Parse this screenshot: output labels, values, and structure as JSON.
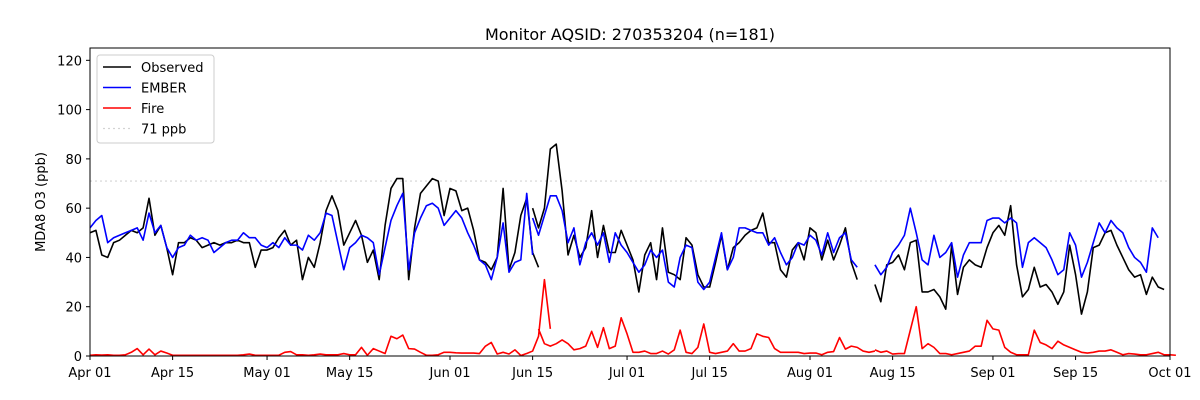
{
  "chart_data": {
    "type": "line",
    "title": "Monitor AQSID: 270353204 (n=181)",
    "xlabel": "",
    "ylabel": "MDA8 O3 (ppb)",
    "x_start": "2023-04-01",
    "x_end": "2023-10-01",
    "x_ticks": [
      {
        "date": "2023-04-01",
        "label": "Apr 01"
      },
      {
        "date": "2023-04-15",
        "label": "Apr 15"
      },
      {
        "date": "2023-05-01",
        "label": "May 01"
      },
      {
        "date": "2023-05-15",
        "label": "May 15"
      },
      {
        "date": "2023-06-01",
        "label": "Jun 01"
      },
      {
        "date": "2023-06-15",
        "label": "Jun 15"
      },
      {
        "date": "2023-07-01",
        "label": "Jul 01"
      },
      {
        "date": "2023-07-15",
        "label": "Jul 15"
      },
      {
        "date": "2023-08-01",
        "label": "Aug 01"
      },
      {
        "date": "2023-08-15",
        "label": "Aug 15"
      },
      {
        "date": "2023-09-01",
        "label": "Sep 01"
      },
      {
        "date": "2023-09-15",
        "label": "Sep 15"
      },
      {
        "date": "2023-10-01",
        "label": "Oct 01"
      }
    ],
    "ylim": [
      0,
      125
    ],
    "y_ticks": [
      0,
      20,
      40,
      60,
      80,
      100,
      120
    ],
    "threshold": {
      "name": "71 ppb",
      "value": 71,
      "color": "#d3d3d3"
    },
    "legend_position": "top-left",
    "grid": false,
    "series": [
      {
        "name": "Observed",
        "color": "#000000",
        "segments": [
          {
            "start": "2023-04-01",
            "values": [
              50,
              51,
              41,
              40,
              46,
              47,
              49,
              51,
              50,
              52,
              64,
              49,
              53,
              44,
              33,
              46,
              46,
              48,
              47,
              44,
              45,
              46,
              45,
              46,
              46,
              47,
              46,
              46,
              36,
              43,
              43,
              44,
              48,
              51,
              45,
              47,
              31,
              40,
              36,
              46,
              59,
              65,
              59,
              45,
              50,
              55,
              49,
              38,
              43,
              31,
              53,
              68,
              72,
              72,
              31,
              52,
              66,
              69,
              72,
              71,
              57,
              68,
              67,
              59,
              60,
              51,
              39,
              38,
              35,
              40,
              68,
              35,
              42,
              57,
              64,
              42,
              36
            ]
          },
          {
            "start": "2023-06-15",
            "values": [
              60,
              52,
              60,
              84,
              86,
              67,
              41,
              49,
              40,
              44,
              59,
              40,
              53,
              42,
              42,
              51,
              45,
              39,
              26,
              41,
              46,
              31,
              52,
              34,
              33,
              31,
              48,
              45,
              33,
              28,
              28,
              38,
              49,
              35,
              44,
              46,
              49,
              51,
              52,
              58,
              46,
              46,
              35,
              32,
              43,
              46,
              39,
              52,
              50,
              39,
              47,
              39,
              45,
              52,
              38,
              31
            ]
          },
          {
            "start": "2023-08-12",
            "values": [
              29,
              22,
              37,
              38,
              41,
              35,
              46,
              47,
              26,
              26,
              27,
              24,
              19,
              45,
              25,
              36,
              39,
              37,
              36,
              44,
              50,
              53,
              49,
              61,
              37,
              24,
              27,
              36,
              28,
              29,
              26,
              21,
              26,
              45,
              33,
              17,
              26,
              44,
              45,
              50,
              51,
              45,
              40,
              35,
              32,
              33,
              25,
              32,
              28,
              27
            ]
          }
        ]
      },
      {
        "name": "EMBER",
        "color": "#0000ff",
        "segments": [
          {
            "start": "2023-04-01",
            "values": [
              52,
              55,
              57,
              46,
              48,
              49,
              50,
              51,
              52,
              47,
              58,
              50,
              53,
              44,
              40,
              44,
              45,
              49,
              47,
              48,
              47,
              42,
              44,
              46,
              47,
              47,
              50,
              48,
              48,
              45,
              44,
              46,
              44,
              48,
              45,
              45,
              43,
              49,
              47,
              50,
              58,
              57,
              46,
              35,
              44,
              46,
              49,
              48,
              46,
              33,
              44,
              55,
              61,
              66,
              35,
              50,
              56,
              61,
              62,
              60,
              53,
              56,
              59,
              56,
              50,
              45,
              39,
              37,
              31,
              40,
              54,
              34,
              38,
              39,
              66,
              41
            ]
          },
          {
            "start": "2023-06-15",
            "values": [
              56,
              49,
              57,
              65,
              65,
              59,
              46,
              52,
              37,
              46,
              50,
              45,
              50,
              38,
              50,
              45,
              42,
              38,
              34,
              37,
              43,
              40,
              43,
              30,
              28,
              40,
              45,
              44,
              30,
              27,
              30,
              40,
              50,
              35,
              40,
              52,
              52,
              51,
              50,
              50,
              45,
              48,
              42,
              37,
              40,
              46,
              45,
              49,
              47,
              41,
              50,
              42,
              48,
              50,
              39,
              36
            ]
          },
          {
            "start": "2023-08-12",
            "values": [
              37,
              33,
              36,
              42,
              45,
              49,
              60,
              50,
              39,
              37,
              49,
              40,
              42,
              46,
              32,
              41,
              46,
              46,
              46,
              55,
              56,
              56,
              54,
              56,
              54,
              36,
              46,
              48,
              46,
              44,
              39,
              33,
              35,
              50,
              45,
              32,
              38,
              46,
              54,
              50,
              55,
              52,
              50,
              44,
              40,
              38,
              34,
              52,
              48
            ]
          }
        ]
      },
      {
        "name": "Fire",
        "color": "#ff0000",
        "segments": [
          {
            "start": "2023-04-01",
            "values": [
              0.3,
              0.5,
              0.4,
              0.5,
              0.3,
              0.3,
              0.5,
              1.5,
              3,
              0.5,
              2.8,
              0.5,
              2,
              1.2,
              0.3,
              0.3,
              0.3,
              0.3,
              0.3,
              0.3,
              0.3,
              0.3,
              0.3,
              0.3,
              0.3,
              0.3,
              0.5,
              0.8,
              0.3,
              0.3,
              0.3,
              0.3,
              0.3,
              1.5,
              1.8,
              0.5,
              0.5,
              0.3,
              0.5,
              0.8,
              0.5,
              0.5,
              0.5,
              1,
              0.5,
              0.5,
              3.5,
              0.3,
              3,
              2,
              1,
              8,
              7,
              8.5,
              3,
              2.8,
              1.5,
              0.3,
              0.3,
              0.5,
              1.5,
              1.5,
              1.3,
              1.2,
              1.2,
              1.2,
              1,
              4,
              5.5,
              0.8,
              1.5,
              0.8,
              2.5,
              0.2,
              1,
              2,
              8,
              31,
              11
            ]
          },
          {
            "start": "2023-06-16",
            "values": [
              11,
              5,
              4,
              5,
              6.5,
              5,
              2.5,
              3,
              4,
              10,
              3.5,
              11.5,
              3,
              4,
              15.5,
              9,
              1.5,
              1.5,
              2,
              1,
              1,
              2,
              0.8,
              2.5,
              10.5,
              1.5,
              1,
              3.5,
              13,
              1.5,
              1,
              1.5,
              2,
              5,
              2,
              2,
              3,
              9,
              8,
              7.5,
              3,
              1.5,
              1.5,
              1.5,
              1.5,
              1,
              1.2,
              1.2,
              0.5,
              1.5,
              1.8,
              7.5,
              2.8,
              4,
              3.5,
              2,
              1.5,
              2
            ]
          },
          {
            "start": "2023-08-12",
            "values": [
              2.5,
              1.5,
              2,
              0.8,
              1,
              1,
              10.5,
              20,
              3,
              5,
              3.5,
              1,
              1,
              0.5,
              1,
              1.5,
              2,
              4,
              4,
              14.5,
              11,
              10.5,
              3.5,
              1.5,
              0.5,
              0.5,
              0.5,
              10.5,
              5.5,
              4.5,
              3,
              6,
              4.5,
              3.5,
              2.5,
              1.5,
              1.2,
              1.5,
              2,
              2,
              2.5,
              1.5,
              0.5,
              1,
              0.8,
              0.5,
              0.5,
              1,
              1.5,
              0.5,
              0.5,
              0.3
            ]
          }
        ]
      }
    ]
  }
}
